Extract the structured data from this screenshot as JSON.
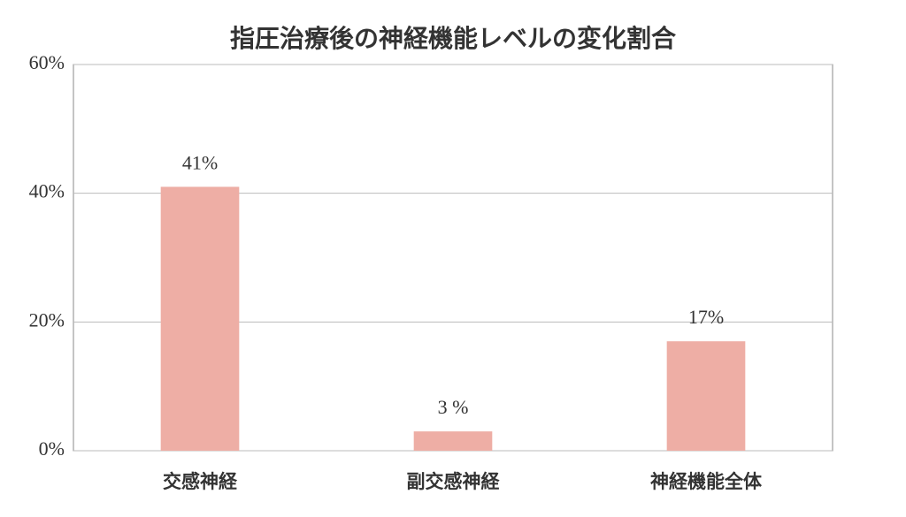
{
  "chart_data": {
    "type": "bar",
    "title": "指圧治療後の神経機能レベルの変化割合",
    "categories": [
      "交感神経",
      "副交感神経",
      "神経機能全体"
    ],
    "values": [
      41,
      3,
      17
    ],
    "value_labels": [
      "41%",
      "3 %",
      "17%"
    ],
    "color": "#eeaea5",
    "ylim": [
      0,
      60
    ],
    "yticks": [
      {
        "value": 0,
        "label": "0%"
      },
      {
        "value": 20,
        "label": "20%"
      },
      {
        "value": 40,
        "label": "40%"
      },
      {
        "value": 60,
        "label": "60%"
      }
    ],
    "grid": true
  }
}
